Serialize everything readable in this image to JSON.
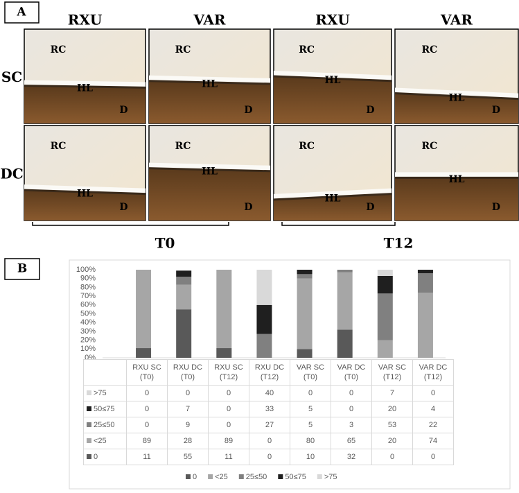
{
  "panel_a": {
    "label": "A",
    "columns": [
      "RXU",
      "VAR",
      "RXU",
      "VAR"
    ],
    "rows": [
      "SC",
      "DC"
    ],
    "timepoints": [
      "T0",
      "T12"
    ],
    "image_labels": [
      "RC",
      "HL",
      "D"
    ]
  },
  "panel_b": {
    "label": "B"
  },
  "chart_data": {
    "type": "bar",
    "stacked": true,
    "categories": [
      "RXU SC (T0)",
      "RXU DC (T0)",
      "RXU SC (T12)",
      "RXU DC (T12)",
      "VAR SC (T0)",
      "VAR DC (T0)",
      "VAR SC (T12)",
      "VAR DC (T12)"
    ],
    "series": [
      {
        "name": "0",
        "color": "#595959",
        "values": [
          11,
          55,
          11,
          0,
          10,
          32,
          0,
          0
        ]
      },
      {
        "name": "<25",
        "color": "#a6a6a6",
        "values": [
          89,
          28,
          89,
          0,
          80,
          65,
          20,
          74
        ]
      },
      {
        "name": "25≤50",
        "color": "#808080",
        "values": [
          0,
          9,
          0,
          27,
          5,
          3,
          53,
          22
        ]
      },
      {
        "name": "50≤75",
        "color": "#1f1f1f",
        "values": [
          0,
          7,
          0,
          33,
          5,
          0,
          20,
          4
        ]
      },
      {
        "name": ">75",
        "color": "#d9d9d9",
        "values": [
          0,
          0,
          0,
          40,
          0,
          0,
          7,
          0
        ]
      }
    ],
    "ylim": [
      0,
      100
    ],
    "yticks": [
      {
        "value": 0,
        "label": "0%"
      },
      {
        "value": 10,
        "label": "10%"
      },
      {
        "value": 20,
        "label": "20%"
      },
      {
        "value": 30,
        "label": "30%"
      },
      {
        "value": 40,
        "label": "40%"
      },
      {
        "value": 50,
        "label": "50%"
      },
      {
        "value": 60,
        "label": "60%"
      },
      {
        "value": 70,
        "label": "70%"
      },
      {
        "value": 80,
        "label": "80%"
      },
      {
        "value": 90,
        "label": "90%"
      },
      {
        "value": 100,
        "label": "100%"
      }
    ],
    "grid": false,
    "legend": "bottom"
  }
}
